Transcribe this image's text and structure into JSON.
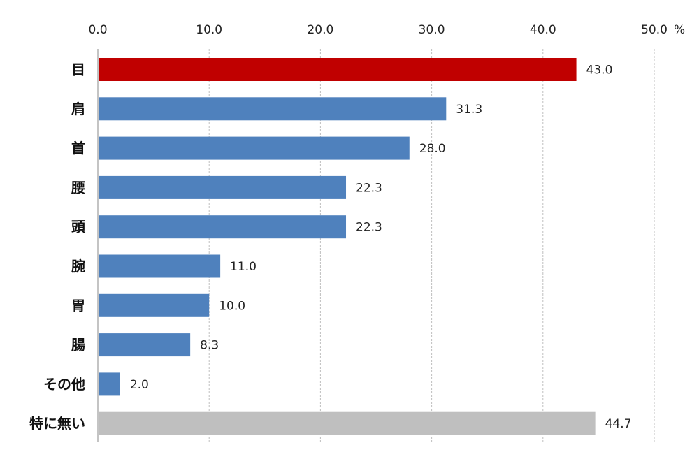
{
  "chart_data": {
    "type": "bar",
    "orientation": "horizontal",
    "categories": [
      "目",
      "肩",
      "首",
      "腰",
      "頭",
      "腕",
      "胃",
      "腸",
      "その他",
      "特に無い"
    ],
    "values": [
      43.0,
      31.3,
      28.0,
      22.3,
      22.3,
      11.0,
      10.0,
      8.3,
      2.0,
      44.7
    ],
    "value_labels": [
      "43.0",
      "31.3",
      "28.0",
      "22.3",
      "22.3",
      "11.0",
      "10.0",
      "8.3",
      "2.0",
      "44.7"
    ],
    "bar_colors": [
      "#c00000",
      "#4f81bd",
      "#4f81bd",
      "#4f81bd",
      "#4f81bd",
      "#4f81bd",
      "#4f81bd",
      "#4f81bd",
      "#4f81bd",
      "#bfbfbf"
    ],
    "xlim": [
      0,
      50
    ],
    "x_ticks": [
      0,
      10,
      20,
      30,
      40,
      50
    ],
    "x_tick_labels": [
      "0.0",
      "10.0",
      "20.0",
      "30.0",
      "40.0",
      "50.0"
    ],
    "x_unit": "%",
    "x_axis_position": "top",
    "grid": true,
    "legend": "none",
    "title": "",
    "xlabel": "",
    "ylabel": ""
  }
}
